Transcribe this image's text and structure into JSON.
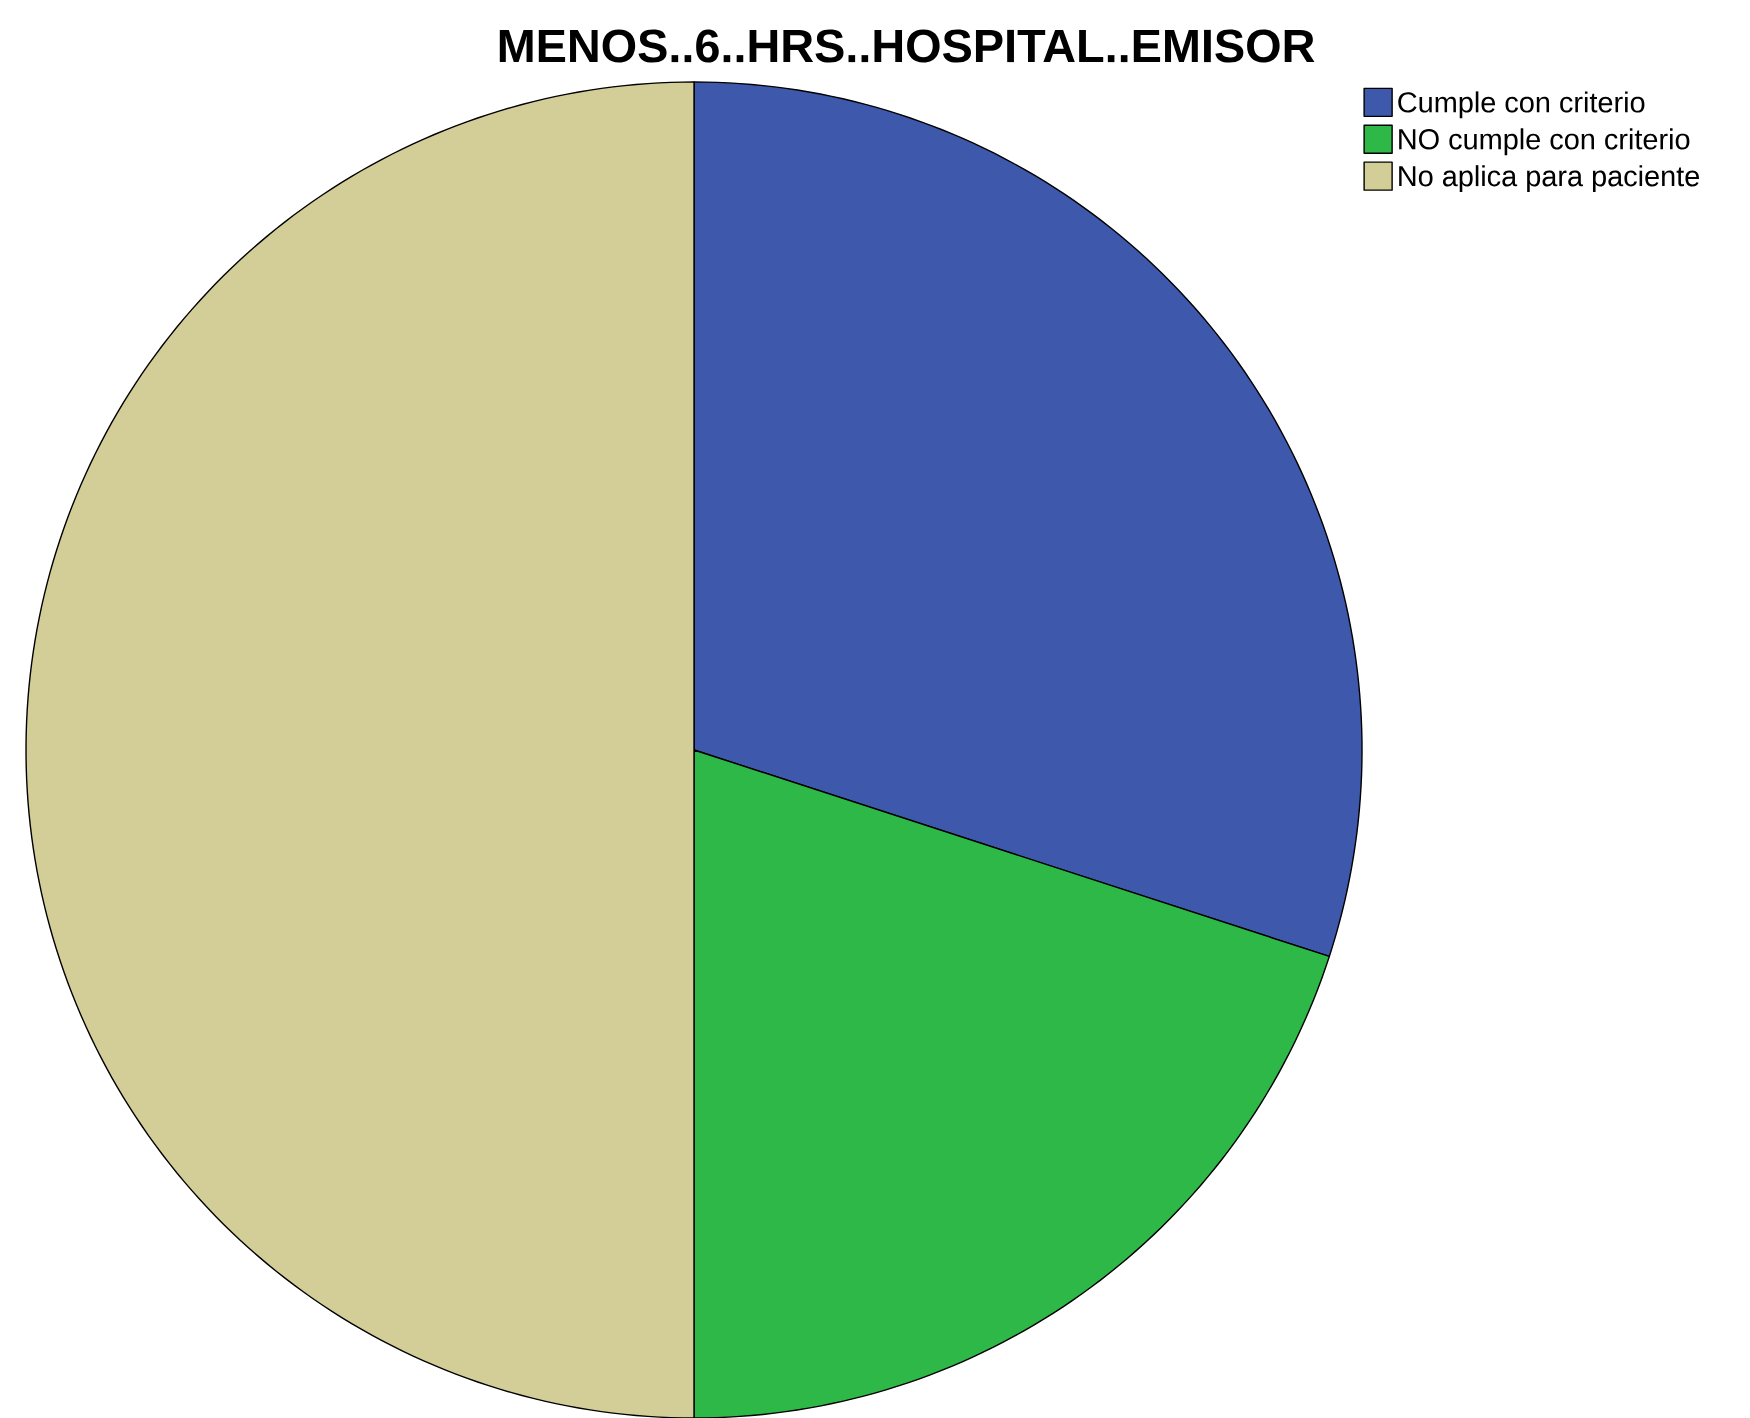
{
  "chart_data": {
    "type": "pie",
    "title": "MENOS..6..HRS..HOSPITAL..EMISOR",
    "categories": [
      "Cumple con criterio",
      "NO cumple con criterio",
      "No aplica para paciente"
    ],
    "values": [
      30,
      20,
      50
    ],
    "colors": [
      "#3e58ac",
      "#2eb848",
      "#d3ce97"
    ],
    "legend": "top right"
  }
}
